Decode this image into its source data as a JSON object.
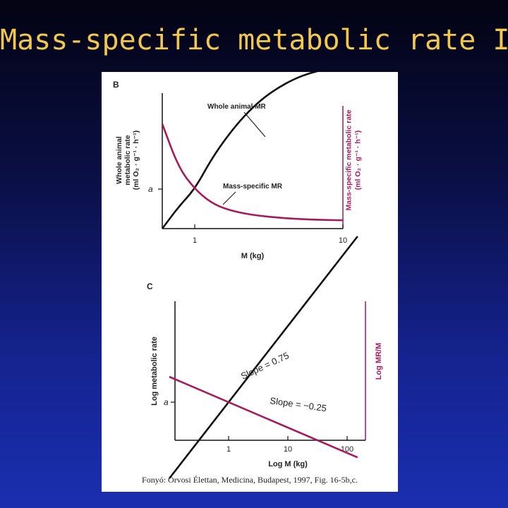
{
  "slide": {
    "title": "Mass-specific metabolic rate I.",
    "caption": "Fonyó: Orvosi Élettan, Medicina, Budapest, 1997, Fig. 16-5b,c."
  },
  "colors": {
    "title": "#f2c74e",
    "whole_animal": "#111111",
    "mass_specific": "#a8195c"
  },
  "chart_data": [
    {
      "type": "line",
      "panel_label": "B",
      "xlabel": "M (kg)",
      "ylabel_left": [
        "Whole animal",
        "metabolic rate",
        "(ml O₂ · g⁻¹ · h⁻¹)"
      ],
      "ylabel_right": [
        "Mass-specific metabolic rate",
        "(ml O₂ · g⁻¹ · h⁻¹)"
      ],
      "xlim": [
        0,
        10
      ],
      "x_ticks": [
        1,
        10
      ],
      "y_ticks_left": [
        "a"
      ],
      "a_level": 1,
      "series": [
        {
          "name": "Whole animal MR",
          "color": "#111111",
          "x": [
            0,
            0.5,
            1,
            2,
            3,
            4,
            5,
            6,
            7,
            8,
            9,
            10
          ],
          "y": [
            0,
            0.55,
            1.0,
            1.75,
            2.35,
            2.85,
            3.25,
            3.55,
            3.78,
            3.94,
            4.04,
            4.1
          ]
        },
        {
          "name": "Mass-specific MR",
          "color": "#a8195c",
          "x": [
            0,
            0.5,
            1,
            2,
            3,
            4,
            5,
            6,
            7,
            8,
            9,
            10
          ],
          "y": [
            2.65,
            1.55,
            1.0,
            0.65,
            0.48,
            0.38,
            0.32,
            0.28,
            0.25,
            0.23,
            0.22,
            0.21
          ]
        }
      ]
    },
    {
      "type": "line",
      "panel_label": "C",
      "xlabel": "Log M (kg)",
      "ylabel_left": [
        "Log metabolic rate"
      ],
      "ylabel_right": [
        "Log MR/M"
      ],
      "x_scale": "log",
      "xlim": [
        0.1,
        150
      ],
      "x_ticks": [
        1,
        10,
        100
      ],
      "y_ticks_left": [
        "a"
      ],
      "series": [
        {
          "name": "Slope = 0.75",
          "color": "#111111",
          "x": [
            0.1,
            150
          ],
          "y": [
            -0.75,
            1.632
          ]
        },
        {
          "name": "Slope = −0.25",
          "color": "#a8195c",
          "x": [
            0.1,
            150
          ],
          "y": [
            0.25,
            -0.544
          ]
        }
      ]
    }
  ]
}
